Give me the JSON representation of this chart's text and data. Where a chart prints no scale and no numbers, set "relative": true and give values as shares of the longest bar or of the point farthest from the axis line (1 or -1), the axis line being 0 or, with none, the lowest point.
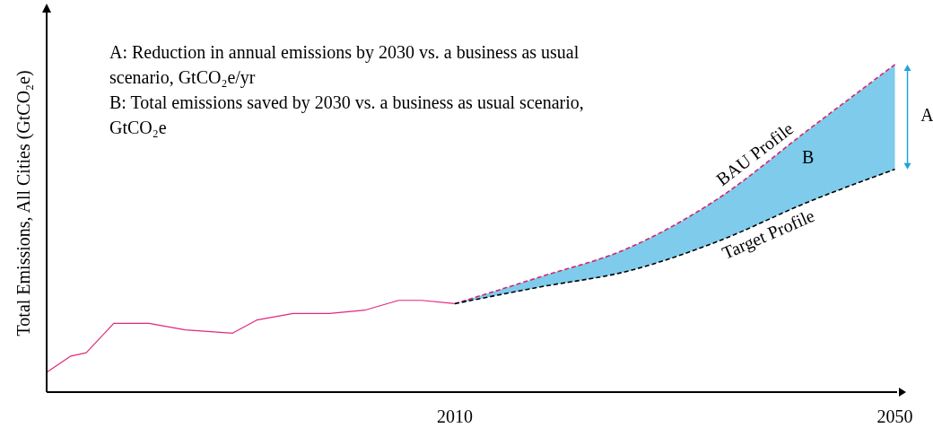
{
  "chart_data": {
    "type": "line",
    "relative": true,
    "ylabel": "Total Emissions, All Cities (GtCO₂e)",
    "xlim": [
      1972.9,
      2050.2
    ],
    "xticks": [
      2010,
      2050
    ],
    "annotations": [
      "A: Reduction in annual emissions by 2030 vs. a business as usual scenario, GtCO₂e/yr",
      "B: Total emissions saved by 2030 vs. a business as usual scenario, GtCO₂e",
      {
        "text": "A",
        "x": 2050,
        "y": 0.84
      },
      "B"
    ],
    "series": [
      {
        "color": "#e0287a",
        "line_style": "solid",
        "x": [
          1972.9,
          1975.1,
          1976.5,
          1979.0,
          1982.2,
          1985.5,
          1989.8,
          1992.0,
          1995.3,
          1998.6,
          2001.8,
          2004.9,
          2007.0,
          2010
        ],
        "values": [
          0.06,
          0.11,
          0.12,
          0.21,
          0.21,
          0.19,
          0.18,
          0.22,
          0.24,
          0.24,
          0.25,
          0.28,
          0.28,
          0.27
        ]
      },
      {
        "name": "BAU Profile",
        "color": "#d6246e",
        "line_style": "dashed",
        "x": [
          2010,
          2017.6,
          2025.8,
          2033.9,
          2042.1,
          2050
        ],
        "values": [
          0.27,
          0.35,
          0.44,
          0.59,
          0.8,
          1.0
        ],
        "lower": [
          0.27,
          0.32,
          0.37,
          0.46,
          0.58,
          0.68
        ],
        "upper": [
          0.27,
          0.35,
          0.44,
          0.59,
          0.8,
          1.0
        ]
      },
      {
        "name": "Target Profile",
        "color": "#000000",
        "line_style": "dashed",
        "x": [
          2010,
          2017.6,
          2025.8,
          2033.9,
          2042.1,
          2050
        ],
        "values": [
          0.27,
          0.32,
          0.37,
          0.46,
          0.58,
          0.68
        ]
      }
    ]
  }
}
